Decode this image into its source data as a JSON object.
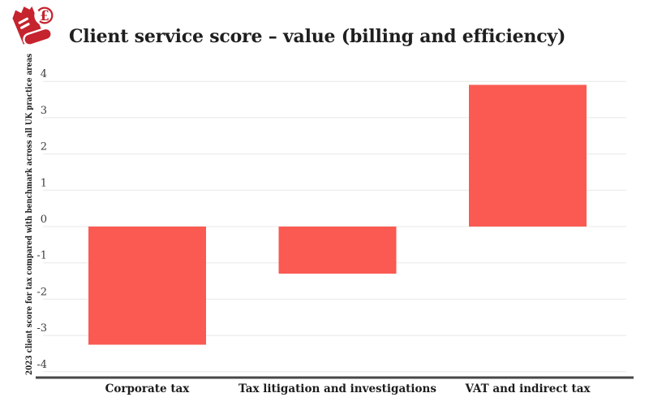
{
  "header": {
    "title": "Client service score – value (billing and efficiency)",
    "logo_icon": "receipt-pound-icon",
    "logo_glyph": "£"
  },
  "chart_data": {
    "type": "bar",
    "title": "Client service score – value (billing and efficiency)",
    "categories": [
      "Corporate tax",
      "Tax litigation and investigations",
      "VAT and indirect tax"
    ],
    "values": [
      -3.25,
      -1.3,
      3.9
    ],
    "xlabel": "",
    "ylabel": "2023 client score for tax compared with benchmark across all UK practice areas",
    "ylim": [
      -4,
      4
    ],
    "ytick_step": 1,
    "yticks": [
      4,
      3,
      2,
      1,
      0,
      -1,
      -2,
      -3,
      -4
    ],
    "grid": true,
    "legend": "none",
    "colors": {
      "bar": "#FA5A52",
      "logo_red": "#C5232E",
      "grid": "#e8e8e8",
      "axis_line": "#474747",
      "tick_text": "#3c3c3c",
      "category_text": "#1c1c1c",
      "title_text": "#1f1f1f"
    }
  }
}
